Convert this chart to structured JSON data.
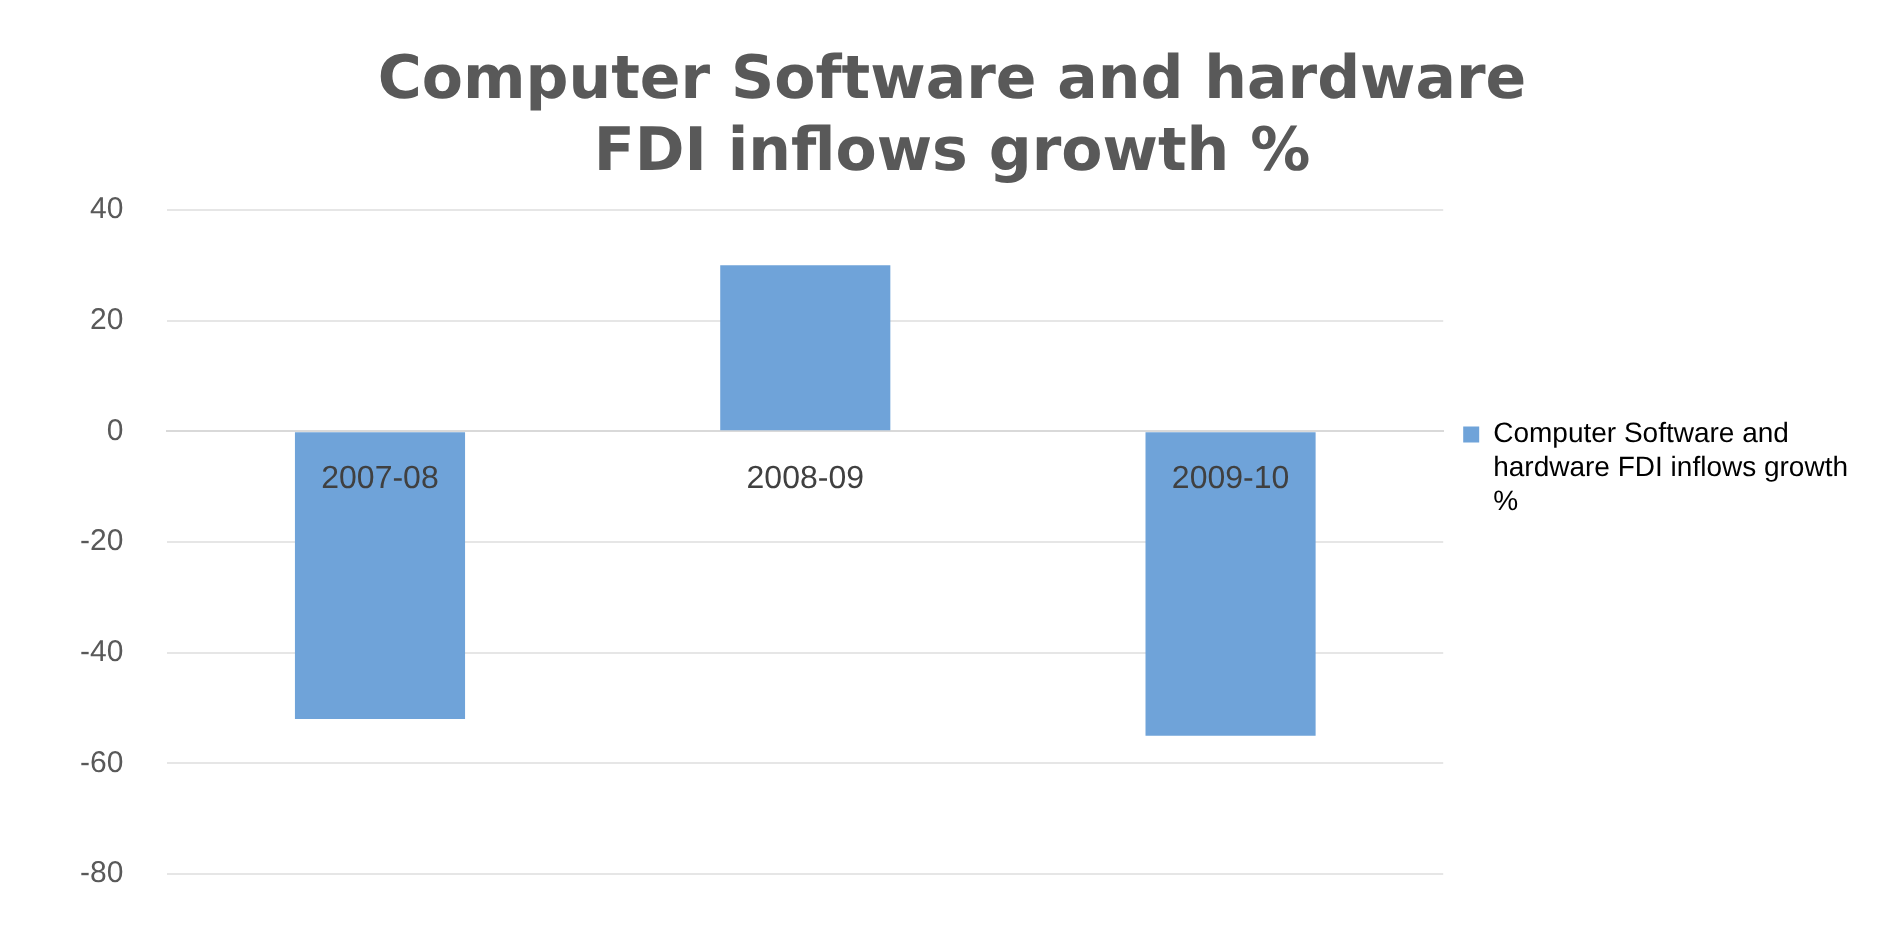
{
  "chart_data": {
    "type": "bar",
    "title": [
      "Computer Software and hardware",
      "FDI inflows growth %"
    ],
    "categories": [
      "2007-08",
      "2008-09",
      "2009-10"
    ],
    "series": [
      {
        "name": "Computer Software and hardware FDI inflows growth %",
        "color": "#6fa3d9",
        "values": [
          -52,
          30,
          -55
        ]
      }
    ],
    "ylim": [
      -80,
      40
    ],
    "yticks": [
      -80,
      -60,
      -40,
      -20,
      0,
      20,
      40
    ],
    "grid": "y",
    "legend": "right"
  }
}
